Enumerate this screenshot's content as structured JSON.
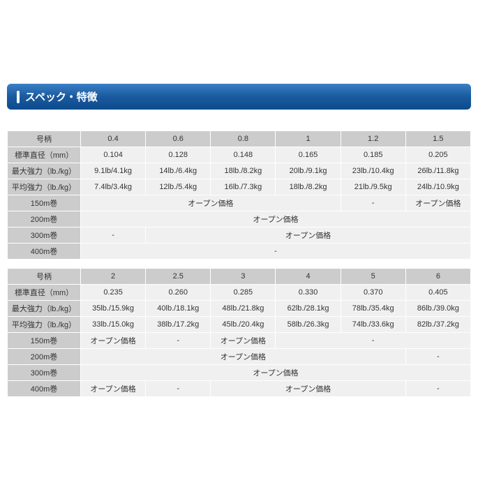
{
  "section_title": "スペック・特徴",
  "colors": {
    "header_gradient_top": "#3a7fc5",
    "header_gradient_mid": "#1a5a9e",
    "header_gradient_bottom": "#0d4a8e",
    "header_text": "#ffffff",
    "th_bg": "#cccccc",
    "td_bg": "#f0f0f0",
    "border": "#ffffff",
    "text": "#333333"
  },
  "table1": {
    "row_headers": [
      "号柄",
      "標準直径（mm）",
      "最大強力（lb./kg）",
      "平均強力（lb./kg）"
    ],
    "columns": [
      "0.4",
      "0.6",
      "0.8",
      "1",
      "1.2",
      "1.5"
    ],
    "diameter": [
      "0.104",
      "0.128",
      "0.148",
      "0.165",
      "0.185",
      "0.205"
    ],
    "max_strength": [
      "9.1lb/4.1kg",
      "14lb./6.4kg",
      "18lb./8.2kg",
      "20lb./9.1kg",
      "23lb./10.4kg",
      "26lb./11.8kg"
    ],
    "avg_strength": [
      "7.4lb/3.4kg",
      "12lb./5.4kg",
      "16lb./7.3kg",
      "18lb./8.2kg",
      "21lb./9.5kg",
      "24lb./10.9kg"
    ],
    "spool": {
      "r150_label": "150m巻",
      "r150_c1": "オープン価格",
      "r150_c2": "-",
      "r150_c3": "オープン価格",
      "r200_label": "200m巻",
      "r200_c1": "オープン価格",
      "r300_label": "300m巻",
      "r300_c1": "-",
      "r300_c2": "オープン価格",
      "r400_label": "400m巻",
      "r400_c1": "-"
    }
  },
  "table2": {
    "row_headers": [
      "号柄",
      "標準直径（mm）",
      "最大強力（lb./kg）",
      "平均強力（lb./kg）"
    ],
    "columns": [
      "2",
      "2.5",
      "3",
      "4",
      "5",
      "6"
    ],
    "diameter": [
      "0.235",
      "0.260",
      "0.285",
      "0.330",
      "0.370",
      "0.405"
    ],
    "max_strength": [
      "35lb./15.9kg",
      "40lb./18.1kg",
      "48lb./21.8kg",
      "62lb./28.1kg",
      "78lb./35.4kg",
      "86lb./39.0kg"
    ],
    "avg_strength": [
      "33lb./15.0kg",
      "38lb./17.2kg",
      "45lb./20.4kg",
      "58lb./26.3kg",
      "74lb./33.6kg",
      "82lb./37.2kg"
    ],
    "spool": {
      "r150_label": "150m巻",
      "r150_c1": "オープン価格",
      "r150_c2": "-",
      "r150_c3": "オープン価格",
      "r150_c4": "-",
      "r200_label": "200m巻",
      "r200_c1": "オープン価格",
      "r200_c2": "-",
      "r300_label": "300m巻",
      "r300_c1": "オープン価格",
      "r400_label": "400m巻",
      "r400_c1": "オープン価格",
      "r400_c2": "-",
      "r400_c3": "オープン価格",
      "r400_c4": "-"
    }
  }
}
